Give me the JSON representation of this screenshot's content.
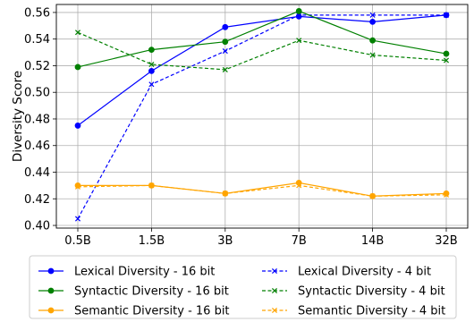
{
  "chart_data": {
    "type": "line",
    "title": "",
    "xlabel": "",
    "ylabel": "Diversity Score",
    "categories": [
      "0.5B",
      "1.5B",
      "3B",
      "7B",
      "14B",
      "32B"
    ],
    "ylim": [
      0.398,
      0.566
    ],
    "yticks": [
      0.4,
      0.42,
      0.44,
      0.46,
      0.48,
      0.5,
      0.52,
      0.54,
      0.56
    ],
    "yticks_labels": [
      "0.40",
      "0.42",
      "0.44",
      "0.46",
      "0.48",
      "0.50",
      "0.52",
      "0.54",
      "0.56"
    ],
    "grid": true,
    "legend_position": "below",
    "series": [
      {
        "name": "Lexical Diversity - 16 bit",
        "values": [
          0.475,
          0.516,
          0.549,
          0.557,
          0.553,
          0.558
        ],
        "color": "#0000ff",
        "dash": "solid",
        "marker": "circle"
      },
      {
        "name": "Lexical Diversity - 4 bit",
        "values": [
          0.405,
          0.506,
          0.531,
          0.558,
          0.558,
          0.558
        ],
        "color": "#0000ff",
        "dash": "dashed",
        "marker": "x"
      },
      {
        "name": "Syntactic Diversity - 16 bit",
        "values": [
          0.519,
          0.532,
          0.538,
          0.561,
          0.539,
          0.529
        ],
        "color": "#008000",
        "dash": "solid",
        "marker": "circle"
      },
      {
        "name": "Syntactic Diversity - 4 bit",
        "values": [
          0.545,
          0.521,
          0.517,
          0.539,
          0.528,
          0.524
        ],
        "color": "#008000",
        "dash": "dashed",
        "marker": "x"
      },
      {
        "name": "Semantic Diversity - 16 bit",
        "values": [
          0.43,
          0.43,
          0.424,
          0.432,
          0.422,
          0.424
        ],
        "color": "#ffa500",
        "dash": "solid",
        "marker": "circle"
      },
      {
        "name": "Semantic Diversity - 4 bit",
        "values": [
          0.429,
          0.43,
          0.424,
          0.43,
          0.422,
          0.423
        ],
        "color": "#ffa500",
        "dash": "dashed",
        "marker": "x"
      }
    ]
  }
}
